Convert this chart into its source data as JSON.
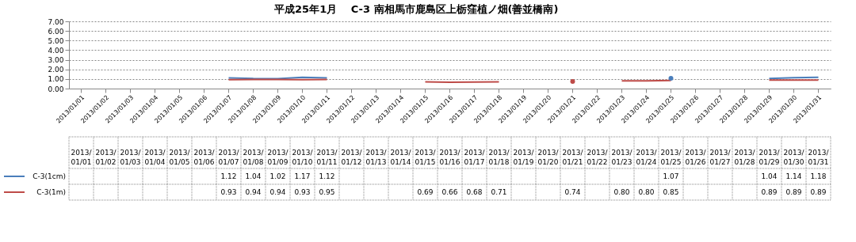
{
  "chart_data": {
    "type": "line",
    "title": "平成25年1月　 C-3 南相馬市鹿島区上栃窪植ノ畑(善並橋南)",
    "categories": [
      "2013/01/01",
      "2013/01/02",
      "2013/01/03",
      "2013/01/04",
      "2013/01/05",
      "2013/01/06",
      "2013/01/07",
      "2013/01/08",
      "2013/01/09",
      "2013/01/10",
      "2013/01/11",
      "2013/01/12",
      "2013/01/13",
      "2013/01/14",
      "2013/01/15",
      "2013/01/16",
      "2013/01/17",
      "2013/01/18",
      "2013/01/19",
      "2013/01/20",
      "2013/01/21",
      "2013/01/22",
      "2013/01/23",
      "2013/01/24",
      "2013/01/25",
      "2013/01/26",
      "2013/01/27",
      "2013/01/28",
      "2013/01/29",
      "2013/01/30",
      "2013/01/31"
    ],
    "series": [
      {
        "name": "C-3(1cm)",
        "color": "#4a7ebb",
        "values": [
          null,
          null,
          null,
          null,
          null,
          null,
          1.12,
          1.04,
          1.02,
          1.17,
          1.12,
          null,
          null,
          null,
          null,
          null,
          null,
          null,
          null,
          null,
          null,
          null,
          null,
          null,
          1.07,
          null,
          null,
          null,
          1.04,
          1.14,
          1.18
        ],
        "value_labels": [
          null,
          null,
          null,
          null,
          null,
          null,
          "1.12",
          "1.04",
          "1.02",
          "1.17",
          "1.12",
          null,
          null,
          null,
          null,
          null,
          null,
          null,
          null,
          null,
          null,
          null,
          null,
          null,
          "1.07",
          null,
          null,
          null,
          "1.04",
          "1.14",
          "1.18"
        ]
      },
      {
        "name": "C-3(1m)",
        "color": "#be4b48",
        "values": [
          null,
          null,
          null,
          null,
          null,
          null,
          0.93,
          0.94,
          0.94,
          0.93,
          0.95,
          null,
          null,
          null,
          0.69,
          0.66,
          0.68,
          0.71,
          null,
          null,
          0.74,
          null,
          0.8,
          0.8,
          0.85,
          null,
          null,
          null,
          0.89,
          0.89,
          0.89
        ],
        "value_labels": [
          null,
          null,
          null,
          null,
          null,
          null,
          "0.93",
          "0.94",
          "0.94",
          "0.93",
          "0.95",
          null,
          null,
          null,
          "0.69",
          "0.66",
          "0.68",
          "0.71",
          null,
          null,
          "0.74",
          null,
          "0.80",
          "0.80",
          "0.85",
          null,
          null,
          null,
          "0.89",
          "0.89",
          "0.89"
        ]
      }
    ],
    "ylim": [
      0,
      7
    ],
    "yticks": [
      {
        "value": 0,
        "label": "0.00"
      },
      {
        "value": 1,
        "label": "1.00"
      },
      {
        "value": 2,
        "label": "2.00"
      },
      {
        "value": 3,
        "label": "3.00"
      },
      {
        "value": 4,
        "label": "4.00"
      },
      {
        "value": 5,
        "label": "5.00"
      },
      {
        "value": 6,
        "label": "6.00"
      },
      {
        "value": 7,
        "label": "7.00"
      }
    ],
    "grid": "y",
    "legend": "bottom left",
    "marker": "none",
    "line_style": "solid"
  }
}
